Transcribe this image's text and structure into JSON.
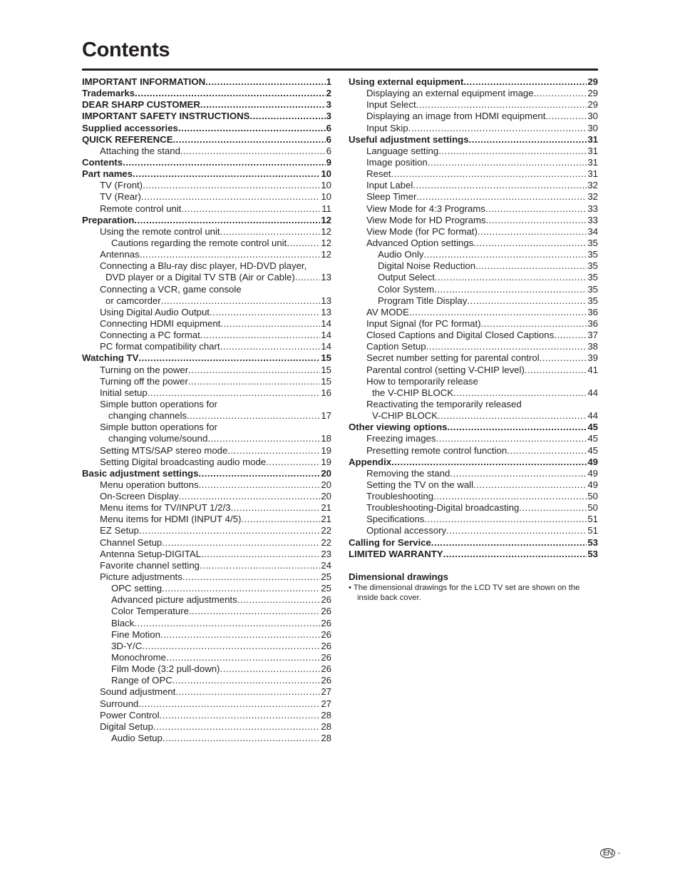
{
  "title": "Contents",
  "left": [
    {
      "t": "IMPORTANT INFORMATION",
      "p": "1",
      "lv": "0"
    },
    {
      "t": "Trademarks",
      "p": "2",
      "lv": "0"
    },
    {
      "t": "DEAR SHARP CUSTOMER",
      "p": "3",
      "lv": "0"
    },
    {
      "t": "IMPORTANT SAFETY INSTRUCTIONS",
      "p": "3",
      "lv": "0"
    },
    {
      "t": "Supplied accessories",
      "p": "6",
      "lv": "0"
    },
    {
      "t": "QUICK REFERENCE",
      "p": "6",
      "lv": "0"
    },
    {
      "t": "Attaching the stand",
      "p": "6",
      "lv": "1"
    },
    {
      "t": "Contents",
      "p": "9",
      "lv": "0"
    },
    {
      "t": "Part names",
      "p": "10",
      "lv": "0"
    },
    {
      "t": "TV (Front)",
      "p": "10",
      "lv": "1"
    },
    {
      "t": "TV (Rear)",
      "p": "10",
      "lv": "1"
    },
    {
      "t": "Remote control unit",
      "p": "11",
      "lv": "1"
    },
    {
      "t": "Preparation",
      "p": "12",
      "lv": "0"
    },
    {
      "t": "Using the remote control unit",
      "p": "12",
      "lv": "1"
    },
    {
      "t": "Cautions regarding the remote control unit",
      "p": "12",
      "lv": "2"
    },
    {
      "t": "Antennas",
      "p": "12",
      "lv": "1"
    },
    {
      "t": "Connecting a Blu-ray disc player, HD-DVD player,",
      "p": "",
      "lv": "1"
    },
    {
      "t": "DVD player or a Digital TV STB (Air or Cable)",
      "p": "13",
      "lv": "1c"
    },
    {
      "t": "Connecting a VCR, game console",
      "p": "",
      "lv": "1"
    },
    {
      "t": "or camcorder",
      "p": "13",
      "lv": "1c"
    },
    {
      "t": "Using Digital Audio Output",
      "p": "13",
      "lv": "1"
    },
    {
      "t": "Connecting HDMI equipment",
      "p": "14",
      "lv": "1"
    },
    {
      "t": "Connecting a PC format",
      "p": "14",
      "lv": "1"
    },
    {
      "t": "PC format compatibility chart",
      "p": "14",
      "lv": "1"
    },
    {
      "t": "Watching TV",
      "p": "15",
      "lv": "0"
    },
    {
      "t": "Turning on the power",
      "p": "15",
      "lv": "1"
    },
    {
      "t": "Turning off the power",
      "p": "15",
      "lv": "1"
    },
    {
      "t": "Initial setup",
      "p": "16",
      "lv": "1"
    },
    {
      "t": "Simple button operations for",
      "p": "",
      "lv": "1"
    },
    {
      "t": "changing channels",
      "p": "17",
      "lv": "1c2"
    },
    {
      "t": "Simple button operations for",
      "p": "",
      "lv": "1"
    },
    {
      "t": "changing volume/sound",
      "p": "18",
      "lv": "1c2"
    },
    {
      "t": "Setting MTS/SAP stereo mode",
      "p": "19",
      "lv": "1"
    },
    {
      "t": "Setting Digital broadcasting audio mode",
      "p": "19",
      "lv": "1"
    },
    {
      "t": "Basic adjustment settings",
      "p": "20",
      "lv": "0"
    },
    {
      "t": "Menu operation buttons",
      "p": "20",
      "lv": "1"
    },
    {
      "t": "On-Screen Display",
      "p": "20",
      "lv": "1"
    },
    {
      "t": "Menu items for TV/INPUT 1/2/3",
      "p": "21",
      "lv": "1"
    },
    {
      "t": "Menu items for HDMI (INPUT 4/5)",
      "p": "21",
      "lv": "1"
    },
    {
      "t": "EZ Setup",
      "p": "22",
      "lv": "1"
    },
    {
      "t": "Channel Setup",
      "p": "22",
      "lv": "1"
    },
    {
      "t": "Antenna Setup-DIGITAL",
      "p": "23",
      "lv": "1"
    },
    {
      "t": "Favorite channel setting",
      "p": "24",
      "lv": "1"
    },
    {
      "t": "Picture adjustments",
      "p": "25",
      "lv": "1"
    },
    {
      "t": "OPC setting",
      "p": "25",
      "lv": "2"
    },
    {
      "t": "Advanced picture adjustments",
      "p": "26",
      "lv": "2"
    },
    {
      "t": "Color Temperature",
      "p": "26",
      "lv": "2"
    },
    {
      "t": "Black",
      "p": "26",
      "lv": "2"
    },
    {
      "t": "Fine Motion",
      "p": "26",
      "lv": "2"
    },
    {
      "t": "3D-Y/C",
      "p": "26",
      "lv": "2"
    },
    {
      "t": "Monochrome",
      "p": "26",
      "lv": "2"
    },
    {
      "t": "Film Mode (3:2 pull-down)",
      "p": "26",
      "lv": "2"
    },
    {
      "t": "Range of OPC",
      "p": "26",
      "lv": "2"
    },
    {
      "t": "Sound adjustment",
      "p": "27",
      "lv": "1"
    },
    {
      "t": "Surround",
      "p": "27",
      "lv": "1"
    },
    {
      "t": "Power Control",
      "p": "28",
      "lv": "1"
    },
    {
      "t": "Digital Setup",
      "p": "28",
      "lv": "1"
    },
    {
      "t": "Audio Setup",
      "p": "28",
      "lv": "2"
    }
  ],
  "right": [
    {
      "t": "Using external equipment",
      "p": "29",
      "lv": "0"
    },
    {
      "t": "Displaying an external equipment image",
      "p": "29",
      "lv": "1"
    },
    {
      "t": "Input Select",
      "p": "29",
      "lv": "1"
    },
    {
      "t": "Displaying an image from HDMI equipment",
      "p": "30",
      "lv": "1"
    },
    {
      "t": "Input Skip",
      "p": "30",
      "lv": "1"
    },
    {
      "t": "Useful adjustment settings",
      "p": "31",
      "lv": "0"
    },
    {
      "t": "Language setting",
      "p": "31",
      "lv": "1"
    },
    {
      "t": "Image position",
      "p": "31",
      "lv": "1"
    },
    {
      "t": "Reset",
      "p": "31",
      "lv": "1"
    },
    {
      "t": "Input Label",
      "p": "32",
      "lv": "1"
    },
    {
      "t": "Sleep Timer",
      "p": "32",
      "lv": "1"
    },
    {
      "t": "View Mode for 4:3 Programs",
      "p": "33",
      "lv": "1"
    },
    {
      "t": "View Mode for HD Programs",
      "p": "33",
      "lv": "1"
    },
    {
      "t": "View Mode (for PC format)",
      "p": "34",
      "lv": "1"
    },
    {
      "t": "Advanced Option settings",
      "p": "35",
      "lv": "1"
    },
    {
      "t": "Audio Only",
      "p": "35",
      "lv": "2"
    },
    {
      "t": "Digital Noise Reduction",
      "p": "35",
      "lv": "2"
    },
    {
      "t": "Output Select",
      "p": "35",
      "lv": "2"
    },
    {
      "t": "Color System",
      "p": "35",
      "lv": "2"
    },
    {
      "t": "Program Title Display",
      "p": "35",
      "lv": "2"
    },
    {
      "t": "AV MODE",
      "p": "36",
      "lv": "1"
    },
    {
      "t": "Input Signal (for PC format)",
      "p": "36",
      "lv": "1"
    },
    {
      "t": "Closed Captions and Digital Closed Captions",
      "p": "37",
      "lv": "1"
    },
    {
      "t": "Caption Setup",
      "p": "38",
      "lv": "1"
    },
    {
      "t": "Secret number setting for parental control",
      "p": "39",
      "lv": "1"
    },
    {
      "t": "Parental control (setting V-CHIP level)",
      "p": "41",
      "lv": "1"
    },
    {
      "t": "How to temporarily release",
      "p": "",
      "lv": "1"
    },
    {
      "t": "the V-CHIP BLOCK",
      "p": "44",
      "lv": "1c"
    },
    {
      "t": "Reactivating the temporarily released",
      "p": "",
      "lv": "1"
    },
    {
      "t": "V-CHIP BLOCK",
      "p": "44",
      "lv": "1c"
    },
    {
      "t": "Other viewing options",
      "p": "45",
      "lv": "0"
    },
    {
      "t": "Freezing images",
      "p": "45",
      "lv": "1"
    },
    {
      "t": "Presetting remote control function",
      "p": "45",
      "lv": "1"
    },
    {
      "t": "Appendix",
      "p": "49",
      "lv": "0"
    },
    {
      "t": "Removing the stand",
      "p": "49",
      "lv": "1"
    },
    {
      "t": "Setting the TV on the wall",
      "p": "49",
      "lv": "1"
    },
    {
      "t": "Troubleshooting",
      "p": "50",
      "lv": "1"
    },
    {
      "t": "Troubleshooting-Digital broadcasting",
      "p": "50",
      "lv": "1"
    },
    {
      "t": "Specifications",
      "p": "51",
      "lv": "1"
    },
    {
      "t": "Optional accessory",
      "p": "51",
      "lv": "1"
    },
    {
      "t": "Calling for Service",
      "p": "53",
      "lv": "0"
    },
    {
      "t": "LIMITED WARRANTY",
      "p": "53",
      "lv": "0"
    }
  ],
  "dimensional": {
    "heading": "Dimensional drawings",
    "note": "• The dimensional drawings for the LCD TV set are shown on the inside back cover."
  },
  "footer": {
    "lang_badge": "EN",
    "page_suffix": "-"
  }
}
